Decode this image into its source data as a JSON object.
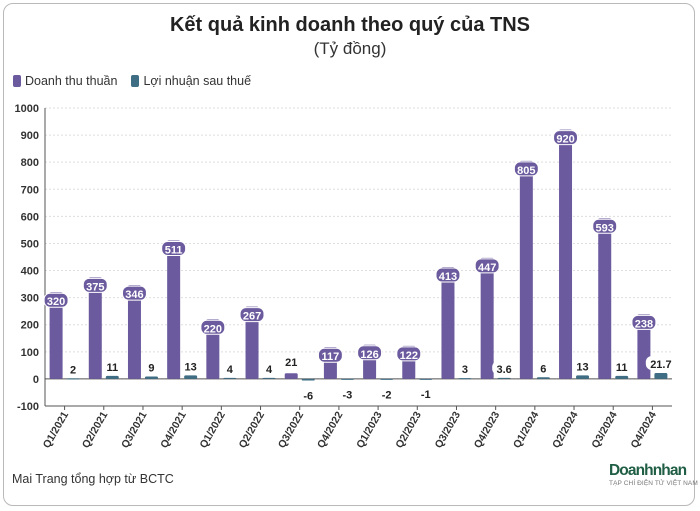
{
  "colors": {
    "revenue": "#6b5a9e",
    "profit": "#3e6d84",
    "label_bg": "#ffffff"
  },
  "chart_data": {
    "type": "bar",
    "title": "Kết quả kinh doanh theo quý của TNS",
    "subtitle": "(Tỷ đồng)",
    "categories": [
      "Q1/2021",
      "Q2/2021",
      "Q3/2021",
      "Q4/2021",
      "Q1/2022",
      "Q2/2022",
      "Q3/2022",
      "Q4/2022",
      "Q1/2023",
      "Q2/2023",
      "Q3/2023",
      "Q4/2023",
      "Q1/2024",
      "Q2/2024",
      "Q3/2024",
      "Q4/2024"
    ],
    "series": [
      {
        "name": "Doanh thu thuần",
        "values": [
          320,
          375,
          346,
          511,
          220,
          267,
          21,
          117,
          126,
          122,
          413,
          447,
          805,
          920,
          593,
          238
        ],
        "labels": [
          "320",
          "375",
          "346",
          "511",
          "220",
          "267",
          "21",
          "117",
          "126",
          "122",
          "413",
          "447",
          "805",
          "920",
          "593",
          "238"
        ]
      },
      {
        "name": "Lợi nhuận sau thuế",
        "values": [
          2,
          11,
          9,
          13,
          4,
          4,
          -6,
          -3,
          -2,
          -1,
          3,
          3.6,
          6,
          13,
          11,
          21.7
        ],
        "labels": [
          "2",
          "11",
          "9",
          "13",
          "4",
          "4",
          "-6",
          "-3",
          "-2",
          "-1",
          "3",
          "3.6",
          "6",
          "13",
          "11",
          "21.7"
        ]
      }
    ],
    "ylim": [
      -100,
      1000
    ],
    "yticks": [
      "-100",
      "0",
      "100",
      "200",
      "300",
      "400",
      "500",
      "600",
      "700",
      "800",
      "900",
      "1000"
    ],
    "grid": true,
    "legend": "top-left"
  },
  "footer": {
    "source": "Mai Trang tổng hợp từ BCTC",
    "logo_main": "Doanhnhan",
    "logo_sub": "TẠP CHÍ ĐIỆN TỬ VIỆT NAM"
  }
}
